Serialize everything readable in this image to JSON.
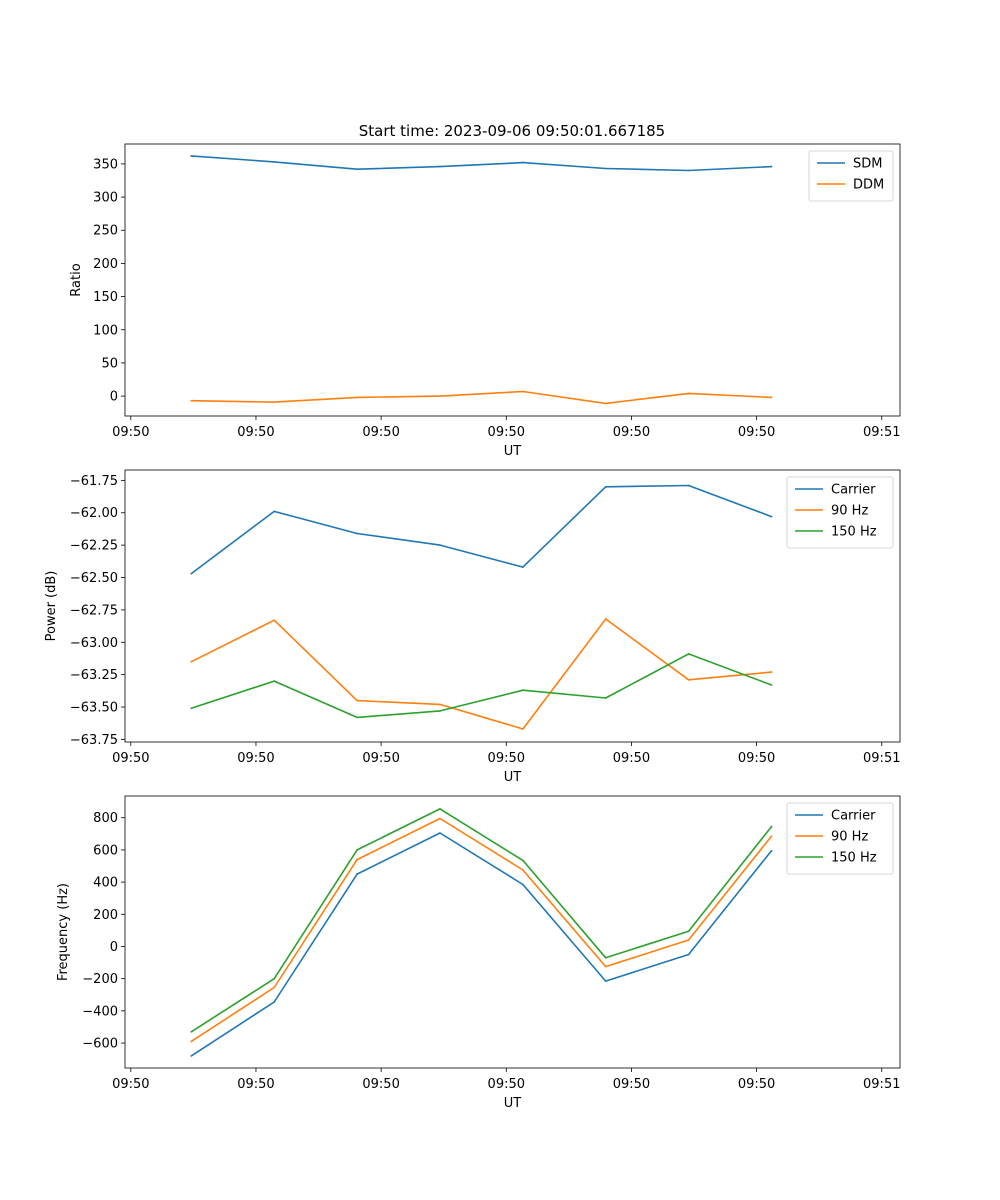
{
  "figure_title": "Start time: 2023-09-06 09:50:01.667185",
  "chart_data": [
    {
      "type": "line",
      "title": "Start time: 2023-09-06 09:50:01.667185",
      "xlabel": "UT",
      "ylabel": "Ratio",
      "x": [
        1,
        2,
        3,
        4,
        5,
        6,
        7,
        8
      ],
      "xlim": [
        0.2,
        9.55
      ],
      "xticks": [
        0.27,
        1.78,
        3.29,
        4.8,
        6.31,
        7.82,
        9.33
      ],
      "xtick_labels": [
        "09:50",
        "09:50",
        "09:50",
        "09:50",
        "09:50",
        "09:50",
        "09:51"
      ],
      "ylim": [
        -30,
        380
      ],
      "yticks": [
        0,
        50,
        100,
        150,
        200,
        250,
        300,
        350
      ],
      "yticks_text": [
        "0",
        "50",
        "100",
        "150",
        "200",
        "250",
        "300",
        "350"
      ],
      "legend_position": "top-right",
      "series": [
        {
          "name": "SDM",
          "color": "#1f77b4",
          "values": [
            362,
            353,
            342,
            346,
            352,
            343,
            340,
            346
          ]
        },
        {
          "name": "DDM",
          "color": "#ff7f0e",
          "values": [
            -7,
            -9,
            -2,
            0,
            7,
            -11,
            4,
            -2
          ]
        }
      ]
    },
    {
      "type": "line",
      "xlabel": "UT",
      "ylabel": "Power (dB)",
      "x": [
        1,
        2,
        3,
        4,
        5,
        6,
        7,
        8
      ],
      "xlim": [
        0.2,
        9.55
      ],
      "xticks": [
        0.27,
        1.78,
        3.29,
        4.8,
        6.31,
        7.82,
        9.33
      ],
      "xtick_labels": [
        "09:50",
        "09:50",
        "09:50",
        "09:50",
        "09:50",
        "09:50",
        "09:51"
      ],
      "ylim": [
        -63.77,
        -61.67
      ],
      "yticks": [
        -63.75,
        -63.5,
        -63.25,
        -63.0,
        -62.75,
        -62.5,
        -62.25,
        -62.0,
        -61.75
      ],
      "yticks_text": [
        "−63.75",
        "−63.50",
        "−63.25",
        "−63.00",
        "−62.75",
        "−62.50",
        "−62.25",
        "−62.00",
        "−61.75"
      ],
      "legend_position": "top-right",
      "series": [
        {
          "name": "Carrier",
          "color": "#1f77b4",
          "values": [
            -62.47,
            -61.99,
            -62.16,
            -62.25,
            -62.42,
            -61.8,
            -61.79,
            -62.03
          ]
        },
        {
          "name": "90 Hz",
          "color": "#ff7f0e",
          "values": [
            -63.15,
            -62.83,
            -63.45,
            -63.48,
            -63.67,
            -62.82,
            -63.29,
            -63.23
          ]
        },
        {
          "name": "150 Hz",
          "color": "#2ca02c",
          "values": [
            -63.51,
            -63.3,
            -63.58,
            -63.53,
            -63.37,
            -63.43,
            -63.09,
            -63.33
          ]
        }
      ]
    },
    {
      "type": "line",
      "xlabel": "UT",
      "ylabel": "Frequency (Hz)",
      "x": [
        1,
        2,
        3,
        4,
        5,
        6,
        7,
        8
      ],
      "xlim": [
        0.2,
        9.55
      ],
      "xticks": [
        0.27,
        1.78,
        3.29,
        4.8,
        6.31,
        7.82,
        9.33
      ],
      "xtick_labels": [
        "09:50",
        "09:50",
        "09:50",
        "09:50",
        "09:50",
        "09:50",
        "09:51"
      ],
      "ylim": [
        -755,
        935
      ],
      "yticks": [
        -600,
        -400,
        -200,
        0,
        200,
        400,
        600,
        800
      ],
      "yticks_text": [
        "−600",
        "−400",
        "−200",
        "0",
        "200",
        "400",
        "600",
        "800"
      ],
      "legend_position": "top-right",
      "series": [
        {
          "name": "Carrier",
          "color": "#1f77b4",
          "values": [
            -680,
            -345,
            450,
            705,
            385,
            -215,
            -50,
            595
          ]
        },
        {
          "name": "90 Hz",
          "color": "#ff7f0e",
          "values": [
            -590,
            -255,
            540,
            795,
            475,
            -125,
            40,
            685
          ]
        },
        {
          "name": "150 Hz",
          "color": "#2ca02c",
          "values": [
            -530,
            -200,
            600,
            855,
            535,
            -70,
            95,
            745
          ]
        }
      ]
    }
  ]
}
